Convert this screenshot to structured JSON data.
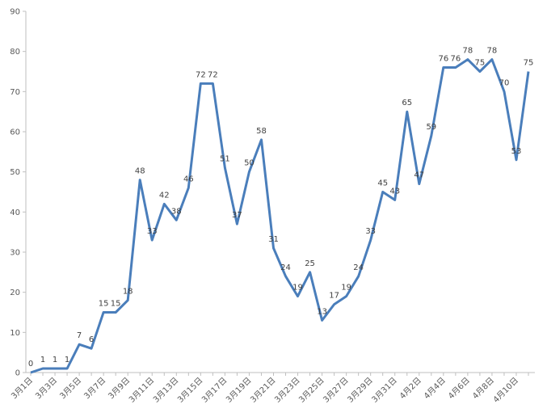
{
  "chart_data": {
    "type": "line",
    "title": "",
    "xlabel": "",
    "ylabel": "",
    "ylim": [
      0,
      90
    ],
    "yticks": [
      0,
      10,
      20,
      30,
      40,
      50,
      60,
      70,
      80,
      90
    ],
    "grid": false,
    "legend": "none",
    "line_color": "#4a7ebb",
    "categories": [
      "3月1日",
      "3月2日",
      "3月3日",
      "3月4日",
      "3月5日",
      "3月6日",
      "3月7日",
      "3月8日",
      "3月9日",
      "3月10日",
      "3月11日",
      "3月12日",
      "3月13日",
      "3月14日",
      "3月15日",
      "3月16日",
      "3月17日",
      "3月18日",
      "3月19日",
      "3月20日",
      "3月21日",
      "3月22日",
      "3月23日",
      "3月24日",
      "3月25日",
      "3月26日",
      "3月27日",
      "3月28日",
      "3月29日",
      "3月30日",
      "3月31日",
      "4月1日",
      "4月2日",
      "4月3日",
      "4月4日",
      "4月5日",
      "4月6日",
      "4月7日",
      "4月8日",
      "4月9日",
      "4月10日",
      "4月11日"
    ],
    "tick_labels": [
      "3月1日",
      "3月3日",
      "3月5日",
      "3月7日",
      "3月9日",
      "3月11日",
      "3月13日",
      "3月15日",
      "3月17日",
      "3月19日",
      "3月21日",
      "3月23日",
      "3月25日",
      "3月27日",
      "3月29日",
      "3月31日",
      "4月2日",
      "4月4日",
      "4月6日",
      "4月8日",
      "4月10日"
    ],
    "values": [
      0,
      1,
      1,
      1,
      7,
      6,
      15,
      15,
      18,
      48,
      33,
      42,
      38,
      46,
      72,
      72,
      51,
      37,
      50,
      58,
      31,
      24,
      19,
      25,
      13,
      17,
      19,
      24,
      33,
      45,
      43,
      65,
      47,
      59,
      76,
      76,
      78,
      75,
      78,
      70,
      53,
      75
    ]
  }
}
